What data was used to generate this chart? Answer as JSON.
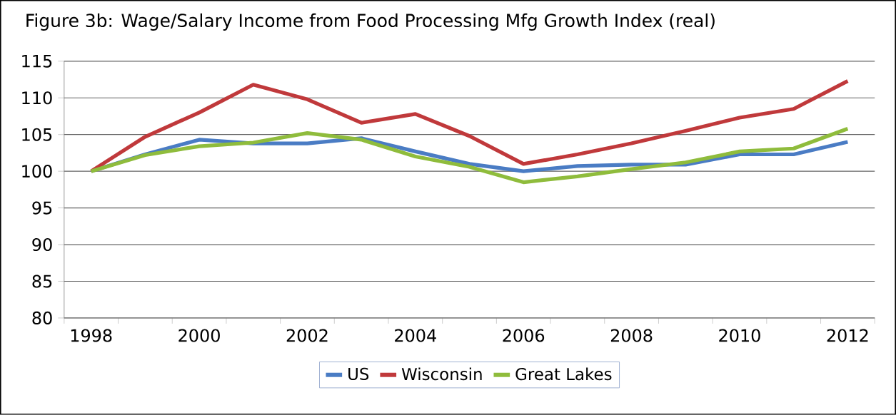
{
  "chart_data": {
    "type": "line",
    "title": "Figure 3b: Wage/Salary Income from Food Processing Mfg Growth Index (real)",
    "categories": [
      "1998",
      null,
      "2000",
      null,
      "2002",
      null,
      "2004",
      null,
      "2006",
      null,
      "2008",
      null,
      "2010",
      null,
      "2012"
    ],
    "series": [
      {
        "name": "US",
        "color": "#4a7cc4",
        "values": [
          100,
          102.3,
          104.3,
          103.8,
          103.8,
          104.5,
          102.7,
          101,
          100,
          100.7,
          100.9,
          100.9,
          102.3,
          102.3,
          104
        ]
      },
      {
        "name": "Wisconsin",
        "color": "#c0393b",
        "values": [
          100,
          104.7,
          108,
          111.8,
          109.8,
          106.6,
          107.8,
          104.8,
          101,
          102.3,
          103.8,
          105.5,
          107.3,
          108.5,
          112.3
        ]
      },
      {
        "name": "Great Lakes",
        "color": "#8fbc3c",
        "values": [
          100,
          102.2,
          103.4,
          103.9,
          105.2,
          104.3,
          102,
          100.6,
          98.5,
          99.3,
          100.3,
          101.2,
          102.7,
          103.1,
          105.8
        ]
      }
    ],
    "ylim": [
      80,
      115
    ],
    "yticks": [
      80,
      85,
      90,
      95,
      100,
      105,
      110,
      115
    ],
    "grid": "y",
    "legend": "bottom",
    "marker": "none",
    "line_style": "solid"
  }
}
